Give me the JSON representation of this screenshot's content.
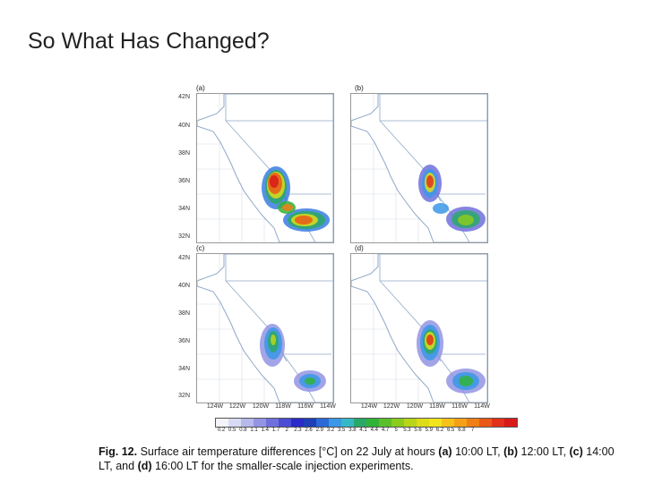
{
  "slide": {
    "title": "So What Has Changed?"
  },
  "figure": {
    "panel_labels": [
      "(a)",
      "(b)",
      "(c)",
      "(d)"
    ],
    "lat_labels": [
      "42N",
      "40N",
      "38N",
      "36N",
      "34N",
      "32N"
    ],
    "lon_labels": [
      "124W",
      "122W",
      "120W",
      "118W",
      "116W",
      "114W"
    ],
    "colorbar": {
      "labels": [
        "0.2",
        "0.5",
        "0.8",
        "1.1",
        "1.4",
        "1.7",
        "2",
        "2.3",
        "2.6",
        "2.9",
        "3.2",
        "3.5",
        "3.8",
        "4.1",
        "4.4",
        "4.7",
        "5",
        "5.3",
        "5.6",
        "5.9",
        "6.2",
        "6.5",
        "6.8",
        "7"
      ],
      "colors": [
        "#f4f4fb",
        "#d9daf3",
        "#b7b8ec",
        "#9394e4",
        "#6f70dc",
        "#4c4dd4",
        "#2a2bc8",
        "#1f3fb8",
        "#2a6ad6",
        "#3a98e6",
        "#36b8c8",
        "#2aa86a",
        "#31b33a",
        "#5ac02a",
        "#8acb1e",
        "#b8d51a",
        "#dedc18",
        "#f2e41c",
        "#f6c21a",
        "#f5a117",
        "#f07e16",
        "#ea5818",
        "#e2321a",
        "#d81a1a"
      ]
    },
    "caption": {
      "fig_label": "Fig. 12.",
      "text1": "Surface air temperature differences [°C] on 22 July at hours",
      "a": "(a)",
      "a_time": "10:00 LT,",
      "b": "(b)",
      "b_time": "12:00 LT,",
      "c": "(c)",
      "c_time": "14:00 LT, and",
      "d": "(d)",
      "d_time": "16:00 LT for the smaller-scale injection experiments."
    }
  }
}
